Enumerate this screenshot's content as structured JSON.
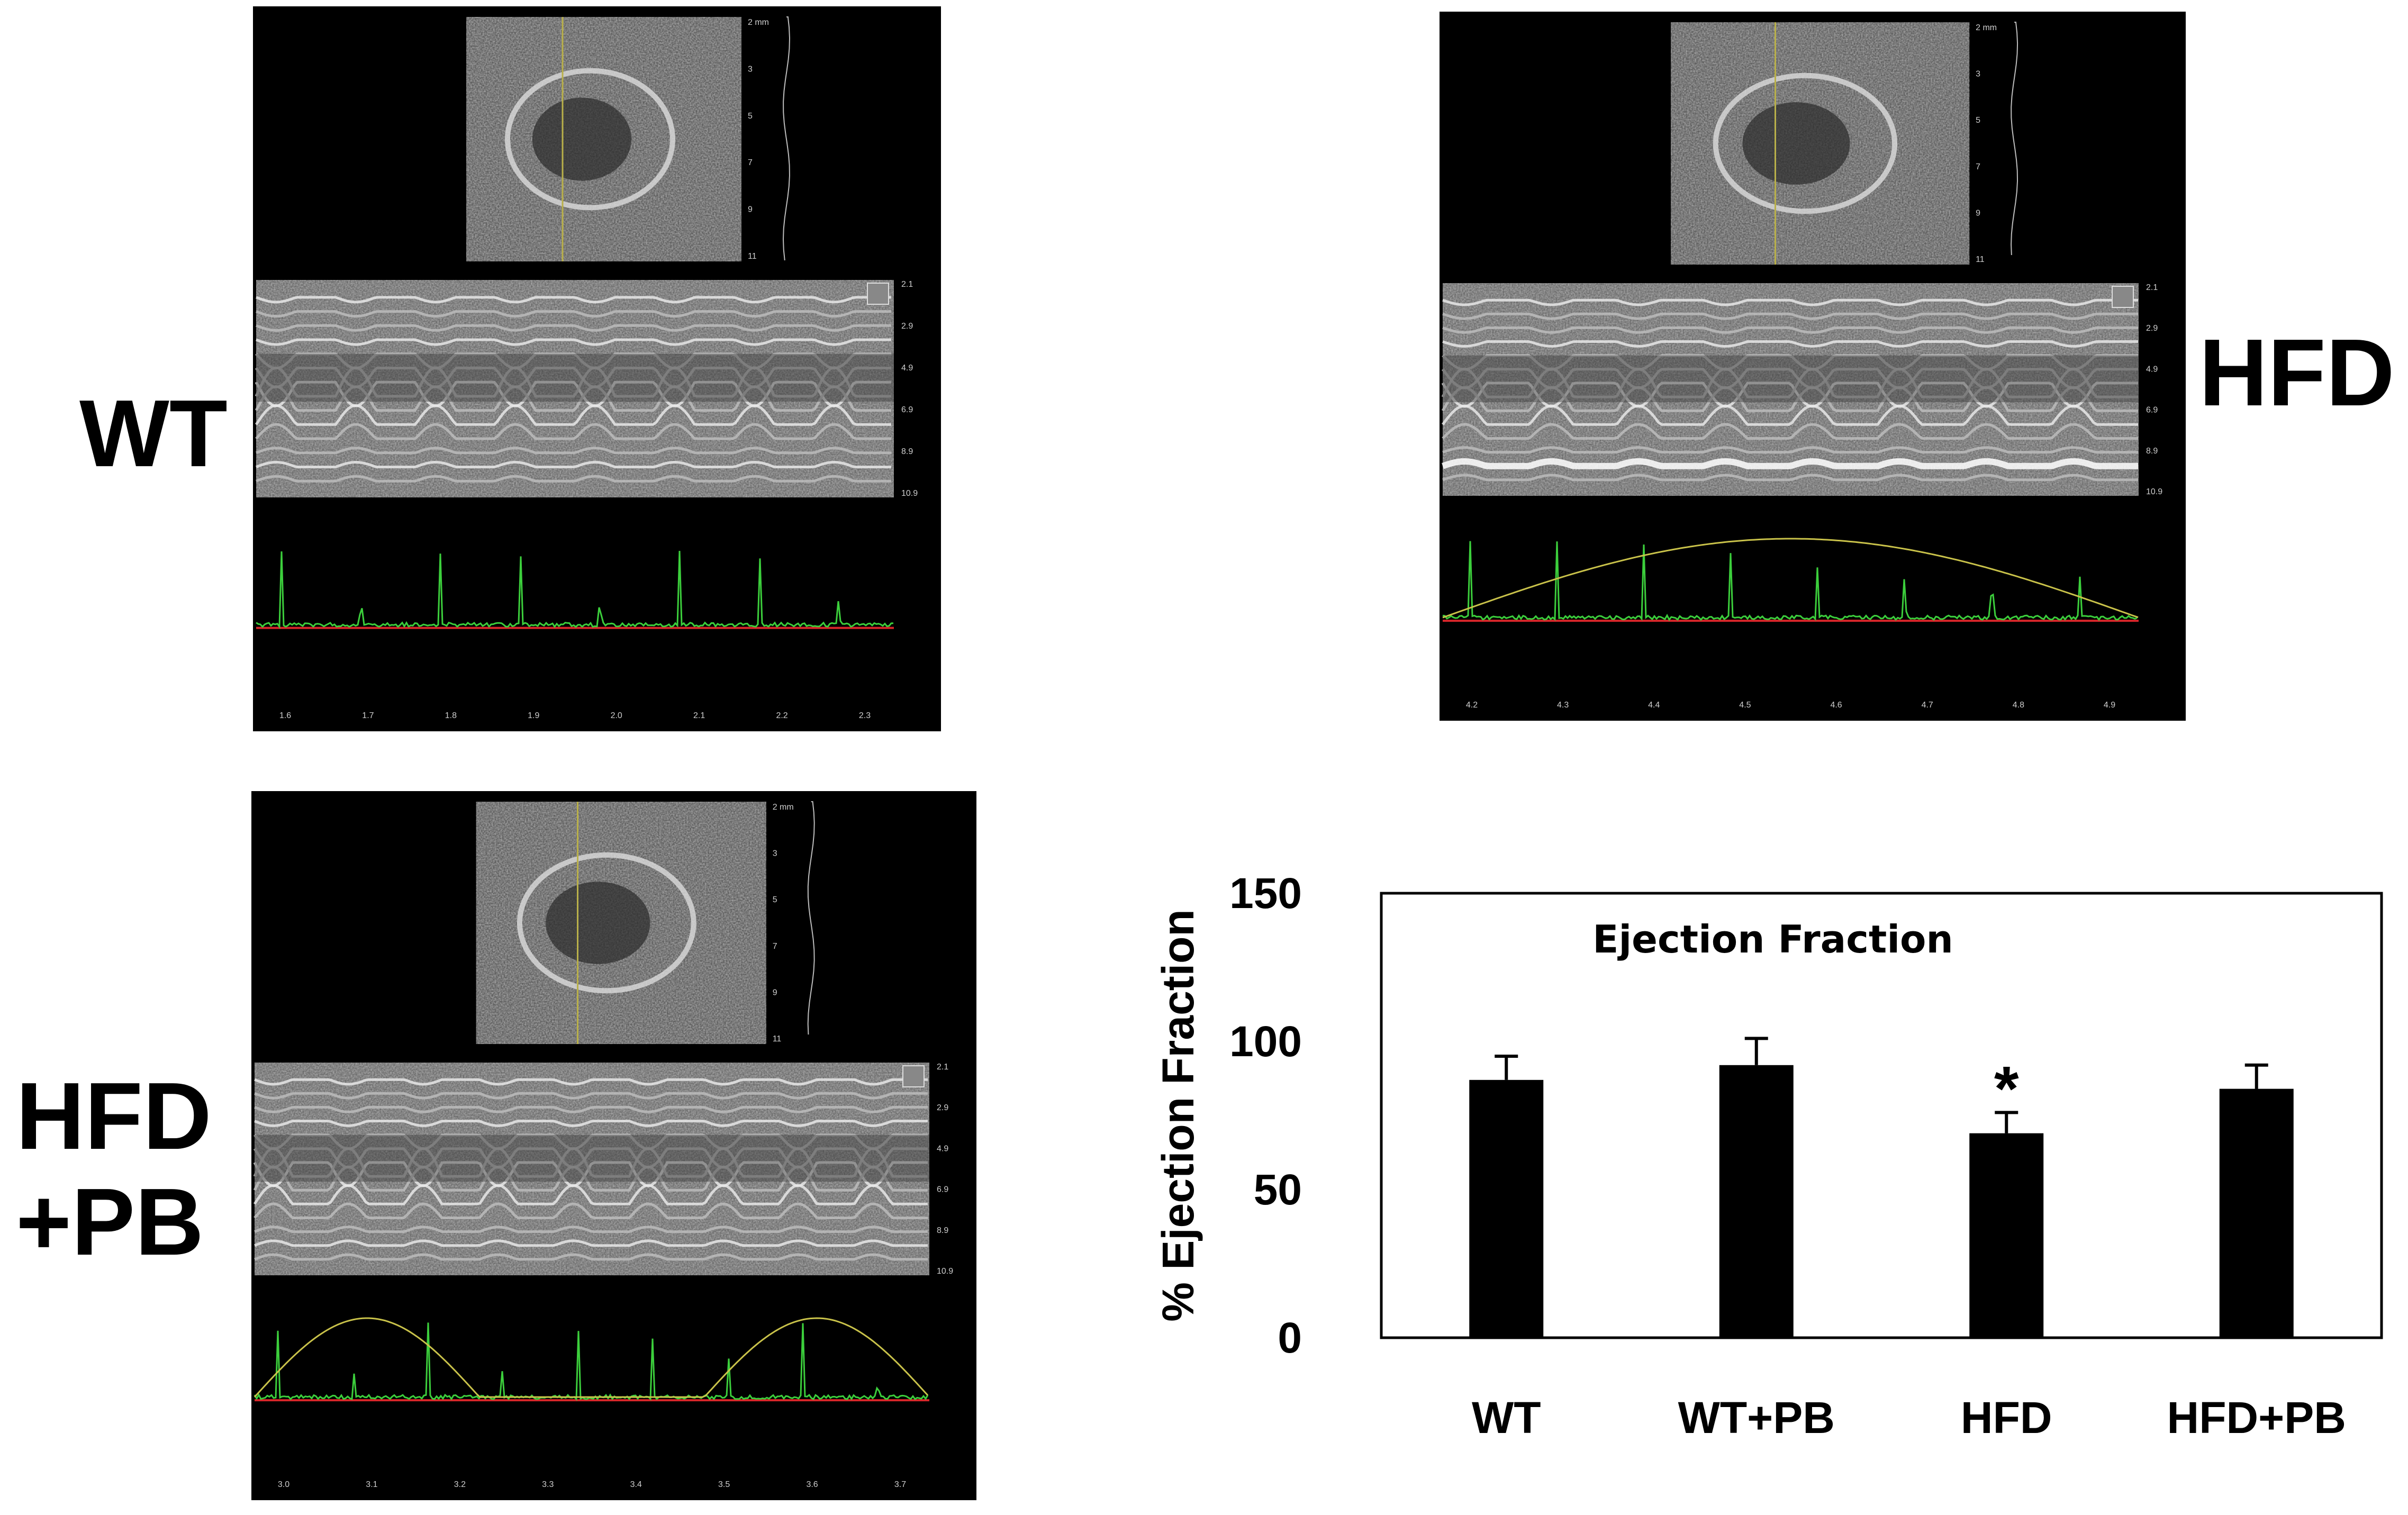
{
  "panels": [
    {
      "id": "wt",
      "label_lines": [
        "WT"
      ],
      "mmode_ticks": [
        "2.1",
        "2.9",
        "4.9",
        "6.9",
        "8.9",
        "10.9"
      ],
      "bmode_ticks": [
        "2 mm",
        "3",
        "5",
        "7",
        "9",
        "11"
      ],
      "time_ticks": [
        "1.6",
        "1.7",
        "1.8",
        "1.9",
        "2.0",
        "2.1",
        "2.2",
        "2.3"
      ]
    },
    {
      "id": "hfd",
      "label_lines": [
        "HFD"
      ],
      "mmode_ticks": [
        "2.1",
        "2.9",
        "4.9",
        "6.9",
        "8.9",
        "10.9"
      ],
      "bmode_ticks": [
        "2 mm",
        "3",
        "5",
        "7",
        "9",
        "11"
      ],
      "time_ticks": [
        "4.2",
        "4.3",
        "4.4",
        "4.5",
        "4.6",
        "4.7",
        "4.8",
        "4.9"
      ]
    },
    {
      "id": "hfdpb",
      "label_lines": [
        "HFD",
        "+PB"
      ],
      "mmode_ticks": [
        "2.1",
        "2.9",
        "4.9",
        "6.9",
        "8.9",
        "10.9"
      ],
      "bmode_ticks": [
        "2 mm",
        "3",
        "5",
        "7",
        "9",
        "11"
      ],
      "time_ticks": [
        "3.0",
        "3.1",
        "3.2",
        "3.3",
        "3.4",
        "3.5",
        "3.6",
        "3.7"
      ]
    }
  ],
  "colors": {
    "bar": "#000000",
    "ecg": "#3ccf3c",
    "baseline": "#d8262a",
    "resp": "#c9c24a"
  },
  "chart_data": {
    "type": "bar",
    "title": "Ejection Fraction",
    "ylabel": "% Ejection Fraction",
    "xlabel": "",
    "categories": [
      "WT",
      "WT+PB",
      "HFD",
      "HFD+PB"
    ],
    "values": [
      87,
      92,
      69,
      84
    ],
    "errors": [
      8,
      9,
      7,
      8
    ],
    "annotations": [
      {
        "category": "HFD",
        "text": "*"
      }
    ],
    "ylim": [
      0,
      150
    ],
    "yticks": [
      "0",
      "50",
      "100",
      "150"
    ],
    "grid": false,
    "legend": "none"
  }
}
